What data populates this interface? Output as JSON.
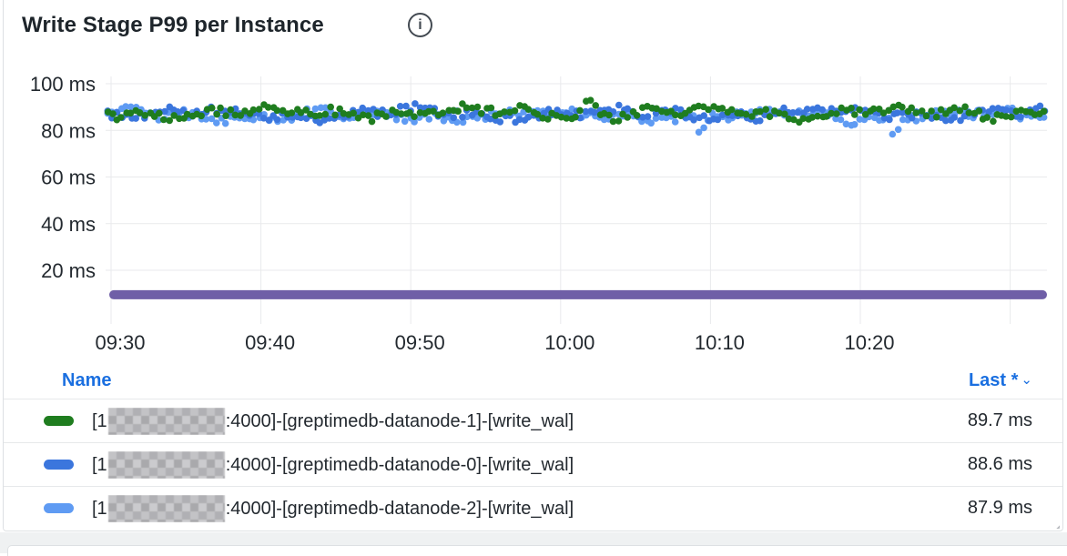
{
  "panel": {
    "title": "Write Stage P99 per Instance",
    "info_icon": "info-circle-icon",
    "info_glyph": "i"
  },
  "chart_data": {
    "type": "scatter",
    "title": "Write Stage P99 per Instance",
    "unit": "ms",
    "grid": true,
    "legend_position": "bottom-table",
    "x_axis": {
      "ticks": [
        "09:30",
        "09:40",
        "09:50",
        "10:00",
        "10:10",
        "10:20"
      ],
      "minutes_per_tick": 10
    },
    "y_axis": {
      "ticks": [
        100,
        80,
        60,
        40,
        20
      ],
      "tick_suffix": " ms",
      "min": 0,
      "max": 105
    },
    "series": [
      {
        "name": "[1<redacted-ip>:4000]-[greptimedb-datanode-1]-[write_wal]",
        "color": "#1f7d1f",
        "style": "points",
        "approx_mean_ms": 87.6,
        "approx_range_ms": [
          80,
          94
        ],
        "last_ms": 89.7
      },
      {
        "name": "[1<redacted-ip>:4000]-[greptimedb-datanode-0]-[write_wal]",
        "color": "#3b76dd",
        "style": "points",
        "approx_mean_ms": 87.2,
        "approx_range_ms": [
          79.5,
          92.5
        ],
        "last_ms": 88.6
      },
      {
        "name": "[1<redacted-ip>:4000]-[greptimedb-datanode-2]-[write_wal]",
        "color": "#5f9bf3",
        "style": "points",
        "approx_mean_ms": 86.3,
        "approx_range_ms": [
          77,
          91.5
        ],
        "last_ms": 87.9
      },
      {
        "name": "unlabeled-flat-series",
        "color": "#6f5fa7",
        "style": "thick-line",
        "approx_mean_ms": 9.5,
        "approx_range_ms": [
          9,
          10
        ],
        "last_ms": null
      }
    ]
  },
  "legend": {
    "name_header": "Name",
    "value_header": "Last *",
    "value_header_chevron": "⌄",
    "rows": [
      {
        "prefix": "[1",
        "redacted_ip": true,
        "suffix": ":4000]-[greptimedb-datanode-1]-[write_wal]",
        "value": "89.7 ms",
        "color": "#1f7d1f"
      },
      {
        "prefix": "[1",
        "redacted_ip": true,
        "suffix": ":4000]-[greptimedb-datanode-0]-[write_wal]",
        "value": "88.6 ms",
        "color": "#3b76dd"
      },
      {
        "prefix": "[1",
        "redacted_ip": true,
        "suffix": ":4000]-[greptimedb-datanode-2]-[write_wal]",
        "value": "87.9 ms",
        "color": "#5f9bf3"
      }
    ]
  },
  "colors": {
    "header_link_blue": "#1a6fe0",
    "grid_line": "#e9eaec",
    "axis_text": "#23292f",
    "title_text": "#1e252b",
    "panel_border": "#dde0e3",
    "dashboard_bg": "#eff1f2"
  }
}
